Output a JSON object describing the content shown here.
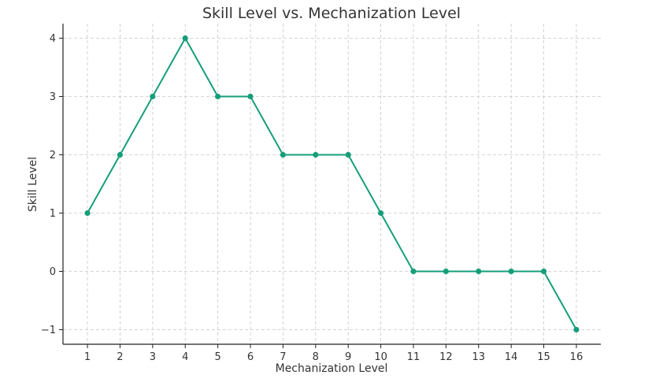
{
  "chart_data": {
    "type": "line",
    "title": "Skill Level vs. Mechanization Level",
    "xlabel": "Mechanization Level",
    "ylabel": "Skill Level",
    "x": [
      1,
      2,
      3,
      4,
      5,
      6,
      7,
      8,
      9,
      10,
      11,
      12,
      13,
      14,
      15,
      16
    ],
    "series": [
      {
        "values": [
          1,
          2,
          3,
          4,
          3,
          3,
          2,
          2,
          2,
          1,
          0,
          0,
          0,
          0,
          0,
          -1
        ],
        "color": "#169e7a"
      }
    ],
    "xticks": [
      "1",
      "2",
      "3",
      "4",
      "5",
      "6",
      "7",
      "8",
      "9",
      "10",
      "11",
      "12",
      "13",
      "14",
      "15",
      "16"
    ],
    "yticks": [
      "−1",
      "0",
      "1",
      "2",
      "3",
      "4"
    ],
    "ytick_values": [
      -1,
      0,
      1,
      2,
      3,
      4
    ],
    "xlim": [
      0.25,
      16.75
    ],
    "ylim": [
      -1.25,
      4.25
    ],
    "grid": true,
    "legend": false,
    "marker": "circle"
  }
}
